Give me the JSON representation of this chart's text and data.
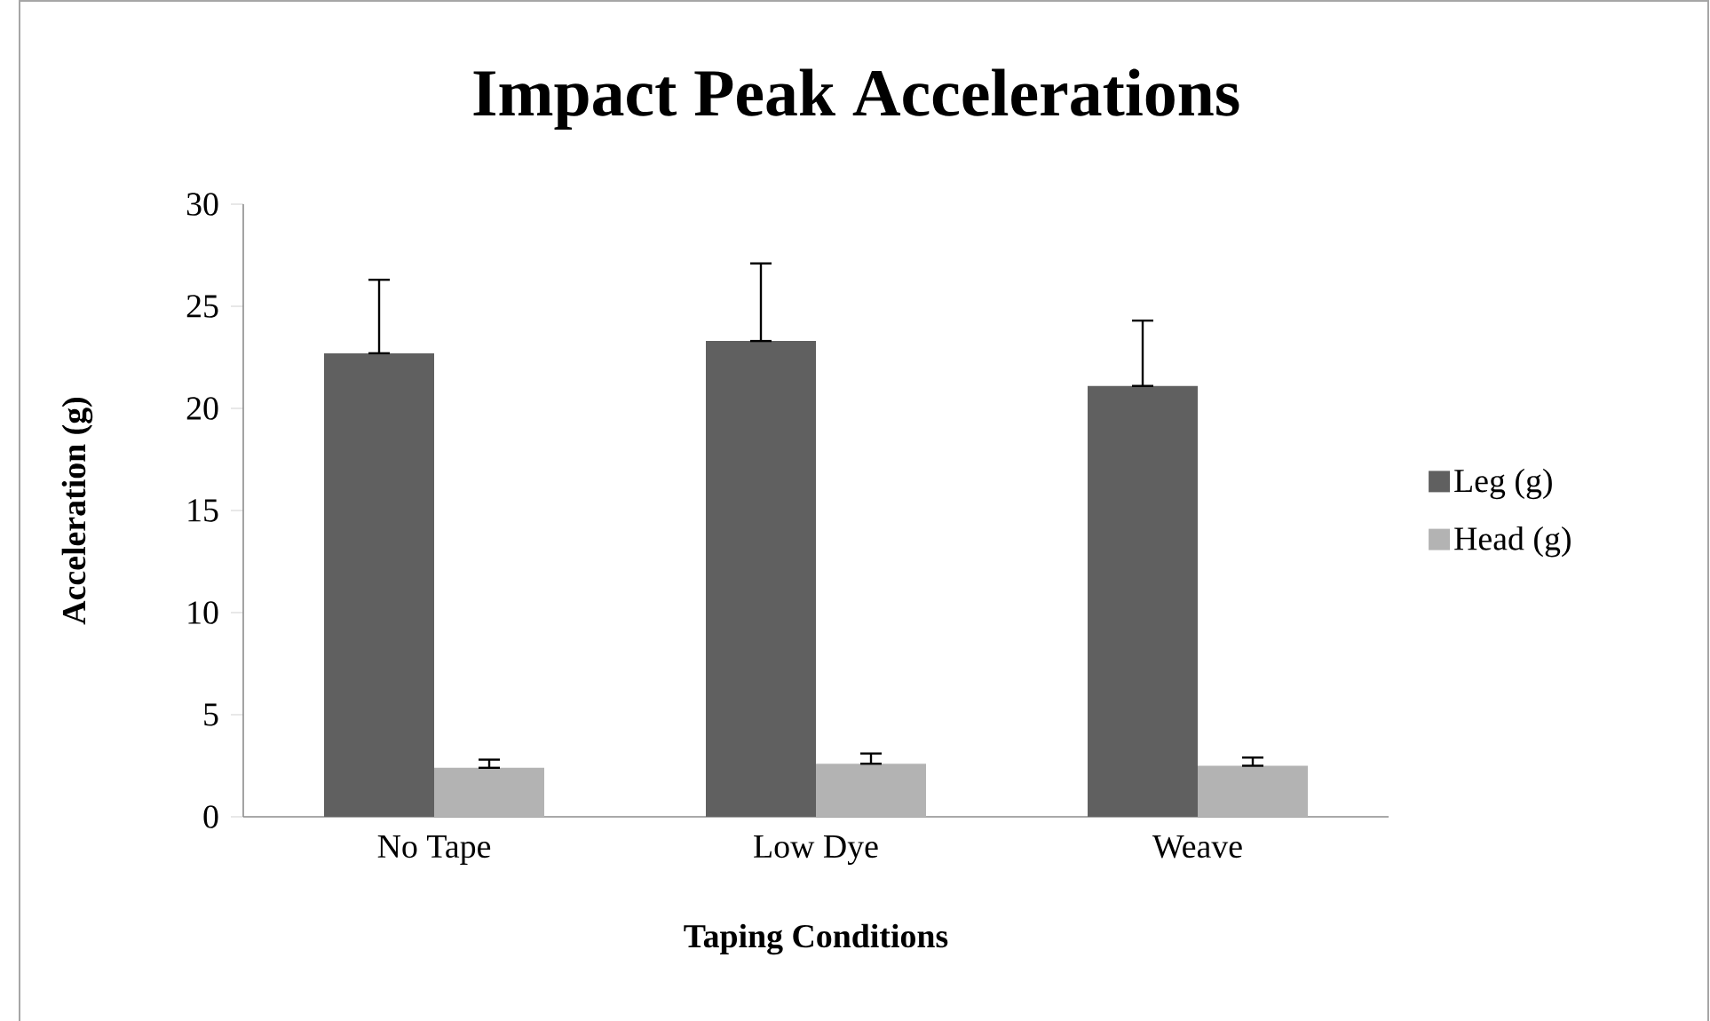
{
  "chart_data": {
    "type": "bar",
    "title": "Impact Peak Accelerations",
    "xlabel": "Taping Conditions",
    "ylabel": "Acceleration (g)",
    "categories": [
      "No Tape",
      "Low Dye",
      "Weave"
    ],
    "series": [
      {
        "name": "Leg (g)",
        "color": "#606060",
        "values": [
          22.7,
          23.3,
          21.1
        ],
        "errors": [
          [
            22.7,
            26.3
          ],
          [
            23.3,
            27.1
          ],
          [
            21.1,
            24.3
          ]
        ]
      },
      {
        "name": "Head (g)",
        "color": "#b3b3b3",
        "values": [
          2.4,
          2.6,
          2.5
        ],
        "errors": [
          [
            2.4,
            2.8
          ],
          [
            2.6,
            3.1
          ],
          [
            2.5,
            2.9
          ]
        ]
      }
    ],
    "ylim": [
      0,
      30
    ],
    "yticks": [
      0,
      5,
      10,
      15,
      20,
      25,
      30
    ],
    "legend": "right"
  }
}
